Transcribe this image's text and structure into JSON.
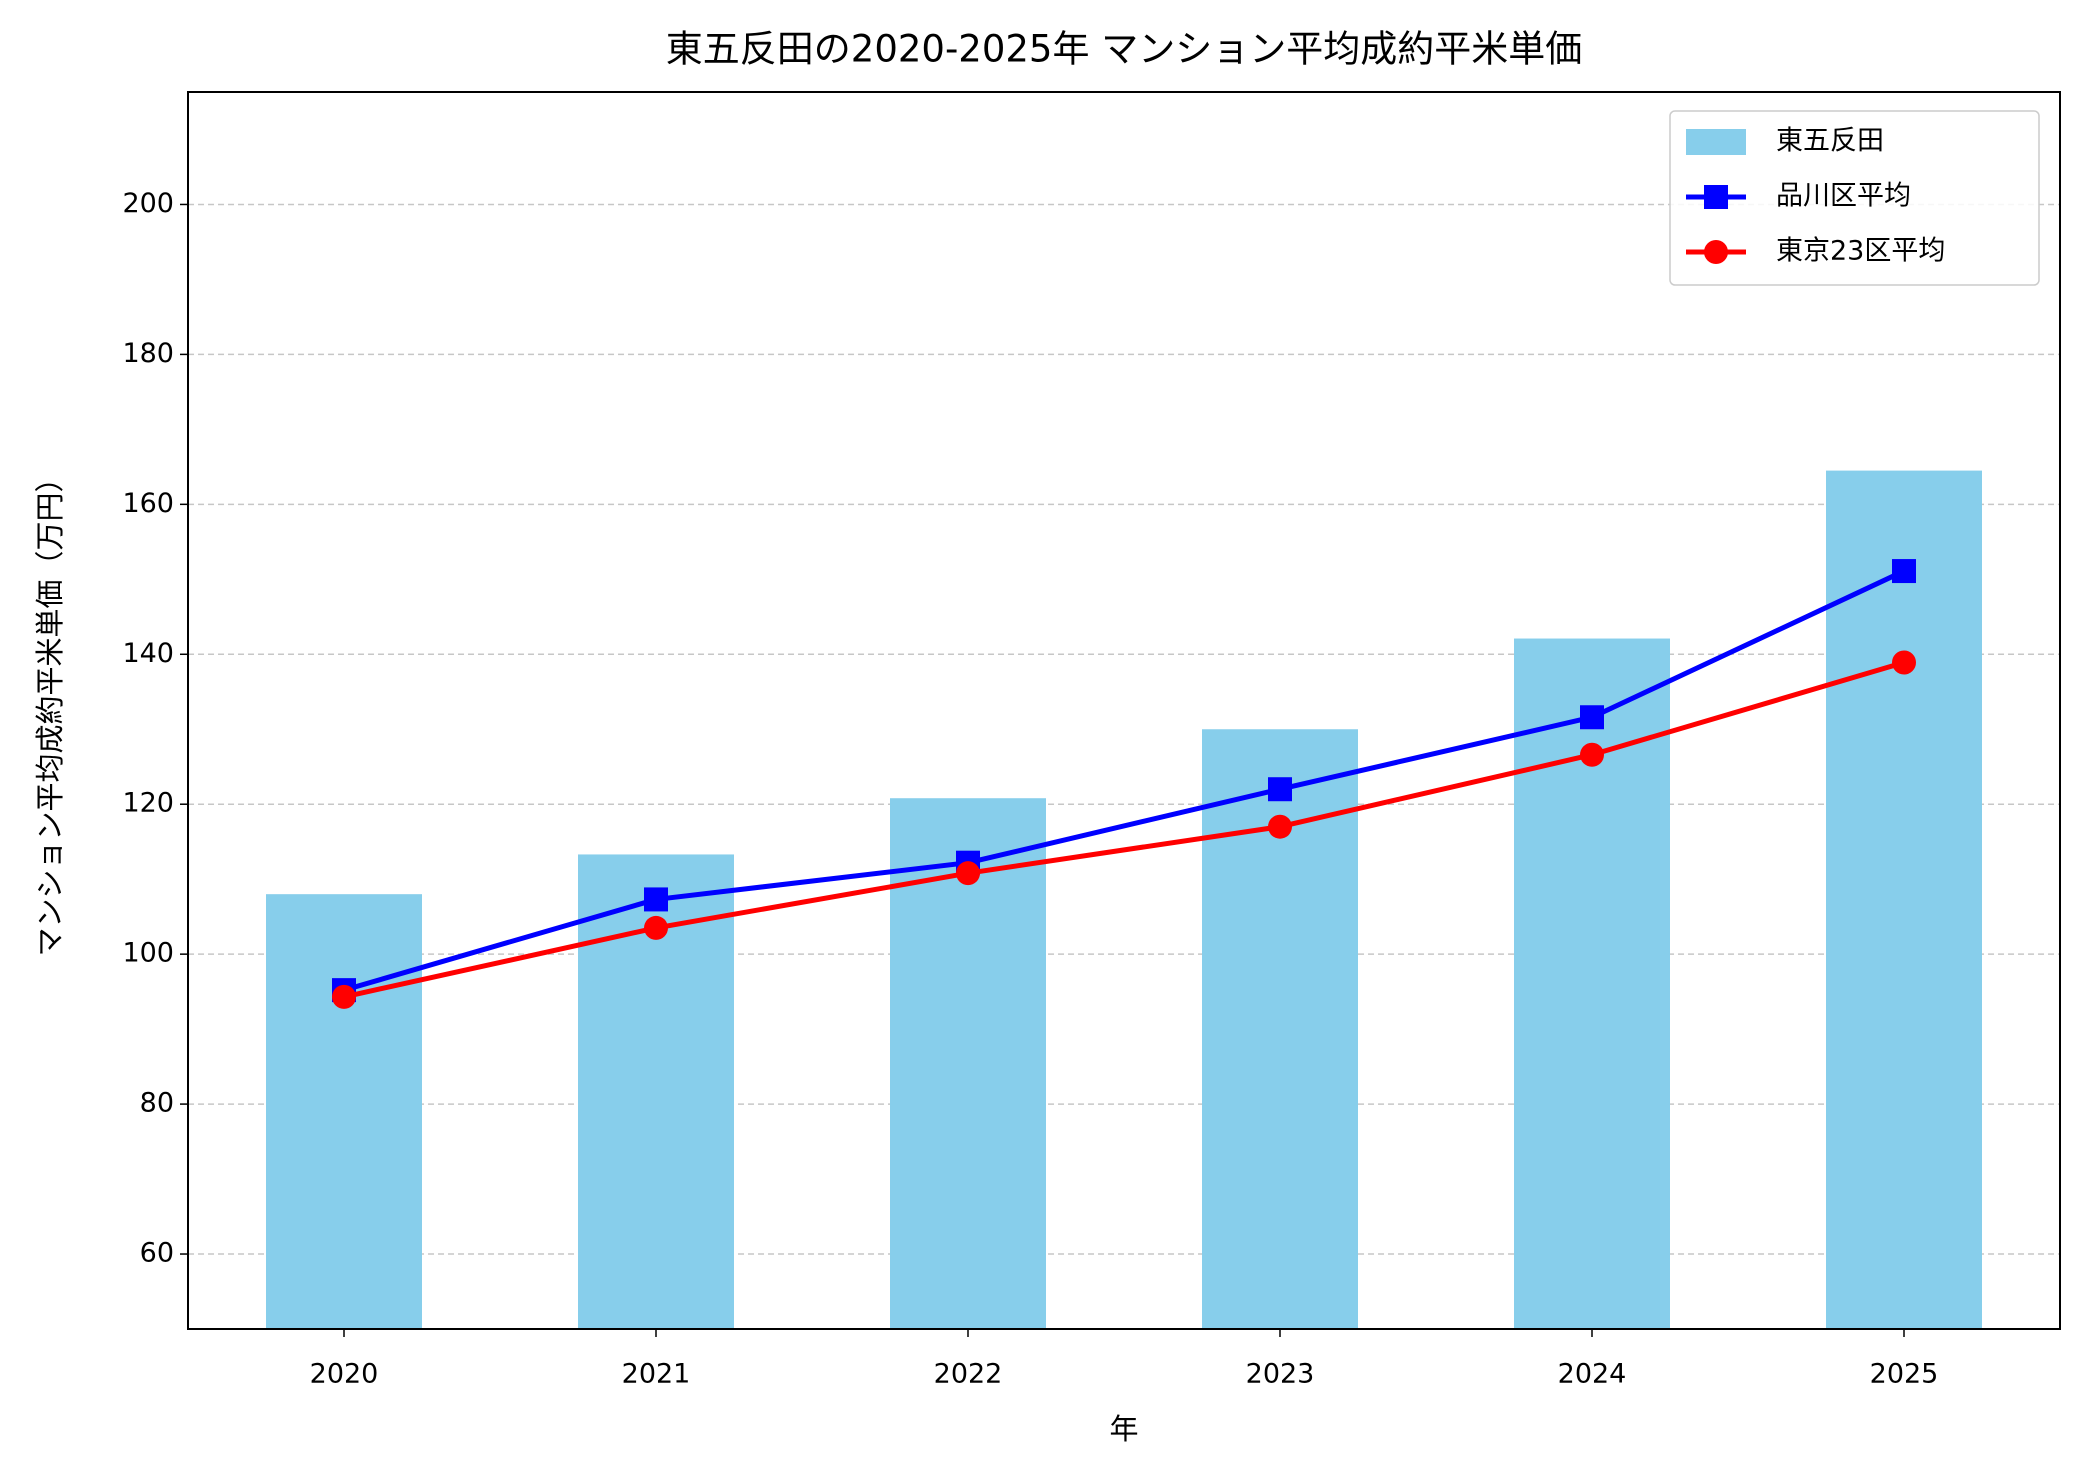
{
  "chart_data": {
    "type": "bar",
    "title": "東五反田の2020-2025年 マンション平均成約平米単価",
    "x_label": "年",
    "y_label": "マンション平均成約平米単価（万円）",
    "categories": [
      "2020",
      "2021",
      "2022",
      "2023",
      "2024",
      "2025"
    ],
    "series": [
      {
        "name": "東五反田",
        "type": "bar",
        "color": "#87ceeb",
        "values": [
          108,
          113.3,
          120.8,
          130,
          142.1,
          164.5
        ]
      },
      {
        "name": "品川区平均",
        "type": "line",
        "marker": "square",
        "color": "#0000ff",
        "values": [
          95.2,
          107.3,
          112.2,
          122,
          131.6,
          151.1
        ]
      },
      {
        "name": "東京23区平均",
        "type": "line",
        "marker": "circle",
        "color": "#ff0000",
        "values": [
          94.3,
          103.5,
          110.8,
          117,
          126.6,
          138.9
        ]
      }
    ],
    "ylim": [
      50,
      215
    ],
    "yticks": [
      60,
      80,
      100,
      120,
      140,
      160,
      180,
      200
    ],
    "grid": true,
    "legend": "upper right"
  }
}
